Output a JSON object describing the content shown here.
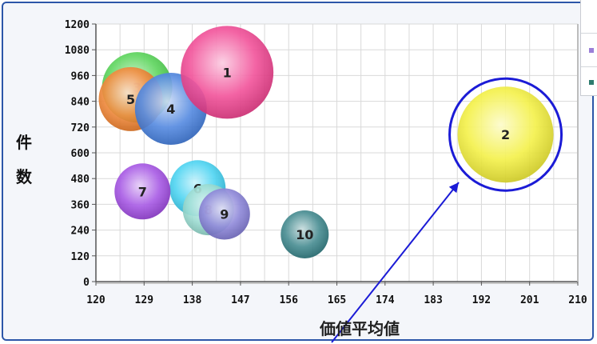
{
  "chart_data": {
    "type": "bubble",
    "title": "",
    "ylabel": "件数",
    "xlabel": "価値平均値",
    "xlim": [
      120,
      210
    ],
    "ylim": [
      0,
      1200
    ],
    "xticks": [
      "120",
      "129",
      "138",
      "147",
      "156",
      "165",
      "174",
      "183",
      "192",
      "201",
      "210"
    ],
    "yticks": [
      "0",
      "120",
      "240",
      "360",
      "480",
      "600",
      "720",
      "840",
      "960",
      "1080",
      "1200"
    ],
    "grid": true,
    "points": [
      {
        "label": "1",
        "x": 144.5,
        "y": 975,
        "size": 58,
        "color": "#f0388a"
      },
      {
        "label": "2",
        "x": 196.5,
        "y": 685,
        "size": 60,
        "color": "#f2ee2e"
      },
      {
        "label": "3",
        "x": 127.7,
        "y": 905,
        "size": 44,
        "color": "#45cf45"
      },
      {
        "label": "4",
        "x": 134.0,
        "y": 805,
        "size": 45,
        "color": "#3b78dc"
      },
      {
        "label": "5",
        "x": 126.5,
        "y": 850,
        "size": 40,
        "color": "#f07a22"
      },
      {
        "label": "6",
        "x": 139.0,
        "y": 435,
        "size": 35,
        "color": "#33cdf0"
      },
      {
        "label": "7",
        "x": 128.7,
        "y": 420,
        "size": 35,
        "color": "#9a40e0"
      },
      {
        "label": "8",
        "x": 141.0,
        "y": 335,
        "size": 32,
        "color": "#8fd8cc"
      },
      {
        "label": "9",
        "x": 144.0,
        "y": 315,
        "size": 32,
        "color": "#7d76d4"
      },
      {
        "label": "10",
        "x": 159.0,
        "y": 220,
        "size": 30,
        "color": "#2a7a80"
      }
    ],
    "highlighted_point": "2",
    "annotation_color": "#1b1bd6",
    "legend": {
      "placement": "top-right",
      "swatch_colors": [
        "#9b7fd8",
        "#2e7b6f"
      ]
    }
  }
}
